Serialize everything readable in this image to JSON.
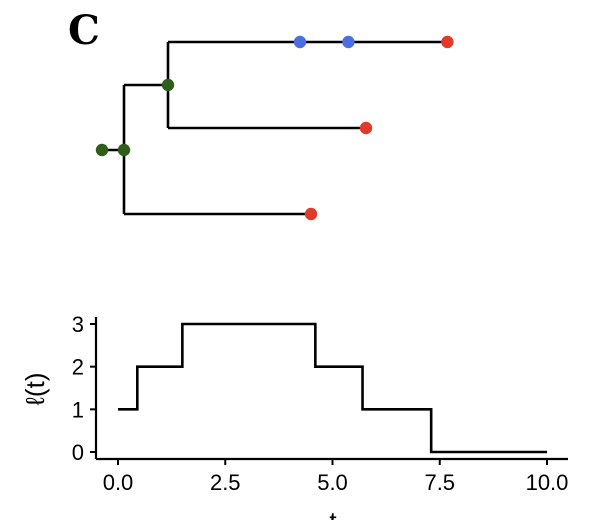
{
  "panel_label": "C",
  "chart_data": [
    {
      "type": "tree",
      "colors": {
        "branch": "#000000",
        "branching_event": "#2e5e1a",
        "sampling_event": "#4a6fe0",
        "tip": "#e03a2a"
      },
      "tips": [
        {
          "time": 7.85,
          "color": "#e03a2a"
        },
        {
          "time": 6.0,
          "color": "#e03a2a"
        },
        {
          "time": 4.75,
          "color": "#e03a2a"
        }
      ],
      "internal_nodes": [
        {
          "time": 0.0,
          "color": "#2e5e1a"
        },
        {
          "time": 0.5,
          "color": "#2e5e1a"
        },
        {
          "time": 1.5,
          "color": "#2e5e1a"
        }
      ],
      "sampled_ancestors": [
        {
          "time": 4.5,
          "color": "#4a6fe0"
        },
        {
          "time": 5.6,
          "color": "#4a6fe0"
        }
      ]
    },
    {
      "type": "line",
      "subtype": "step",
      "x": [
        0.0,
        0.45,
        1.5,
        4.6,
        5.7,
        7.3,
        10.0
      ],
      "y": [
        1,
        2,
        3,
        2,
        1,
        0,
        0
      ],
      "xlabel": "t",
      "ylabel": "ℓ(t)",
      "xlim": [
        -0.5,
        10.5
      ],
      "ylim": [
        0,
        3
      ],
      "xticks": [
        0.0,
        2.5,
        5.0,
        7.5,
        10.0
      ],
      "xtick_labels": [
        "0.0",
        "2.5",
        "5.0",
        "7.5",
        "10.0"
      ],
      "yticks": [
        0,
        1,
        2,
        3
      ],
      "ytick_labels": [
        "0",
        "1",
        "2",
        "3"
      ],
      "grid": false,
      "color": "#000000"
    }
  ]
}
